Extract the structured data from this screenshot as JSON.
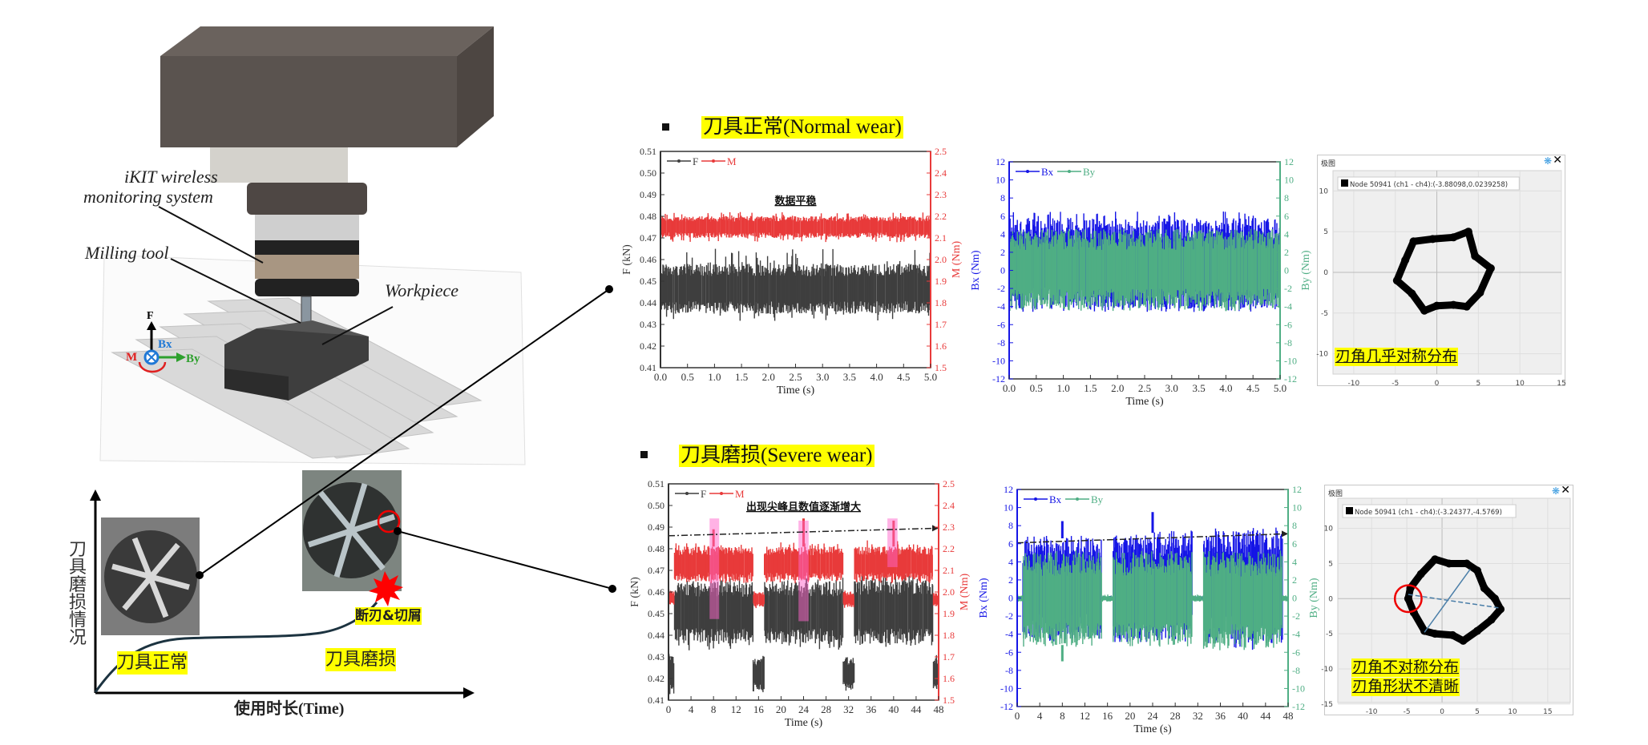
{
  "illustration": {
    "label_system_line1": "iKIT wireless",
    "label_system_line2": "monitoring system",
    "label_tool": "Milling tool",
    "label_workpiece": "Workpiece",
    "axis_F": "F",
    "axis_Bx": "Bx",
    "axis_By": "By",
    "axis_M": "M"
  },
  "wear_curve": {
    "ylabel": "刀具磨损情况",
    "xlabel": "使用时长(Time)",
    "stage_normal": "刀具正常",
    "stage_worn": "刀具磨损",
    "event_label": "断刃&切屑"
  },
  "rows": [
    {
      "header": "刀具正常(Normal wear)"
    },
    {
      "header": "刀具磨损(Severe wear)"
    }
  ],
  "colors": {
    "F": "#3f3f3f",
    "M": "#e83a3a",
    "Bx": "#1515e6",
    "By": "#4fae84",
    "highlight": "#ff66cc",
    "annot": "#ffff00"
  },
  "chart_data": [
    {
      "id": "normal_fm",
      "type": "line",
      "title": "",
      "annotation": "数据平稳",
      "xlabel": "Time (s)",
      "ylabel": "F (kN)",
      "y2label": "M (Nm)",
      "xlim": [
        0,
        5
      ],
      "ylim": [
        0.41,
        0.51
      ],
      "y2lim": [
        1.5,
        2.5
      ],
      "xticks": [
        "0.0",
        "0.5",
        "1.0",
        "1.5",
        "2.0",
        "2.5",
        "3.0",
        "3.5",
        "4.0",
        "4.5",
        "5.0"
      ],
      "yticks": [
        "0.41",
        "0.42",
        "0.43",
        "0.44",
        "0.45",
        "0.46",
        "0.47",
        "0.48",
        "0.49",
        "0.50",
        "0.51"
      ],
      "y2ticks": [
        "1.5",
        "1.6",
        "1.7",
        "1.8",
        "1.9",
        "2.0",
        "2.1",
        "2.2",
        "2.3",
        "2.4",
        "2.5"
      ],
      "legend": [
        "F",
        "M"
      ],
      "legend_position": "top-left",
      "series": [
        {
          "name": "F",
          "axis": "left",
          "color": "#3f3f3f",
          "bands": [
            {
              "x": [
                0,
                5
              ],
              "lo": 0.435,
              "hi": 0.458,
              "min": 0.431,
              "max": 0.465
            }
          ]
        },
        {
          "name": "M",
          "axis": "right",
          "color": "#e83a3a",
          "bands": [
            {
              "x": [
                0,
                5
              ],
              "lo": 2.1,
              "hi": 2.2,
              "min": 2.08,
              "max": 2.22
            }
          ]
        }
      ]
    },
    {
      "id": "normal_bxby",
      "type": "line",
      "xlabel": "Time (s)",
      "ylabel": "Bx (Nm)",
      "y2label": "By (Nm)",
      "xlim": [
        0,
        5
      ],
      "ylim": [
        -12,
        12
      ],
      "y2lim": [
        -12,
        12
      ],
      "xticks": [
        "0.0",
        "0.5",
        "1.0",
        "1.5",
        "2.0",
        "2.5",
        "3.0",
        "3.5",
        "4.0",
        "4.5",
        "5.0"
      ],
      "yticks": [
        "-12",
        "-10",
        "-8",
        "-6",
        "-4",
        "-2",
        "0",
        "2",
        "4",
        "6",
        "8",
        "10",
        "12"
      ],
      "y2ticks": [
        "-12",
        "-10",
        "-8",
        "-6",
        "-4",
        "-2",
        "0",
        "2",
        "4",
        "6",
        "8",
        "10",
        "12"
      ],
      "legend": [
        "Bx",
        "By"
      ],
      "legend_position": "top-left",
      "series": [
        {
          "name": "Bx",
          "axis": "left",
          "color": "#1515e6",
          "bands": [
            {
              "x": [
                0,
                5
              ],
              "lo": -4.3,
              "hi": 5.8,
              "min": -4.6,
              "max": 6.5
            }
          ]
        },
        {
          "name": "By",
          "axis": "right",
          "color": "#4fae84",
          "bands": [
            {
              "x": [
                0,
                5
              ],
              "lo": -4.2,
              "hi": 4.4,
              "min": -4.5,
              "max": 4.6
            }
          ]
        }
      ]
    },
    {
      "id": "severe_fm",
      "type": "line",
      "annotation": "出现尖峰且数值逐渐增大",
      "xlabel": "Time (s)",
      "ylabel": "F (kN)",
      "y2label": "M (Nm)",
      "xlim": [
        0,
        48
      ],
      "ylim": [
        0.41,
        0.51
      ],
      "y2lim": [
        1.5,
        2.5
      ],
      "xticks": [
        "0",
        "4",
        "8",
        "12",
        "16",
        "20",
        "24",
        "28",
        "32",
        "36",
        "40",
        "44",
        "48"
      ],
      "yticks": [
        "0.41",
        "0.42",
        "0.43",
        "0.44",
        "0.45",
        "0.46",
        "0.47",
        "0.48",
        "0.49",
        "0.50",
        "0.51"
      ],
      "y2ticks": [
        "1.5",
        "1.6",
        "1.7",
        "1.8",
        "1.9",
        "2.0",
        "2.1",
        "2.2",
        "2.3",
        "2.4",
        "2.5"
      ],
      "legend": [
        "F",
        "M"
      ],
      "legend_position": "top-left",
      "series": [
        {
          "name": "F",
          "axis": "left",
          "color": "#3f3f3f",
          "bands": [
            {
              "x": [
                0,
                1
              ],
              "lo": 0.413,
              "hi": 0.431,
              "min": 0.412,
              "max": 0.432
            },
            {
              "x": [
                1,
                15
              ],
              "lo": 0.436,
              "hi": 0.465,
              "min": 0.433,
              "max": 0.467
            },
            {
              "x": [
                15,
                17
              ],
              "lo": 0.414,
              "hi": 0.43,
              "min": 0.413,
              "max": 0.431
            },
            {
              "x": [
                17,
                31
              ],
              "lo": 0.436,
              "hi": 0.465,
              "min": 0.433,
              "max": 0.467
            },
            {
              "x": [
                31,
                33
              ],
              "lo": 0.415,
              "hi": 0.43,
              "min": 0.413,
              "max": 0.431
            },
            {
              "x": [
                33,
                47
              ],
              "lo": 0.436,
              "hi": 0.466,
              "min": 0.434,
              "max": 0.468
            },
            {
              "x": [
                47,
                48
              ],
              "lo": 0.415,
              "hi": 0.43,
              "min": 0.413,
              "max": 0.432
            }
          ]
        },
        {
          "name": "M",
          "axis": "right",
          "color": "#e83a3a",
          "bands": [
            {
              "x": [
                0,
                1
              ],
              "lo": 1.94,
              "hi": 2.01,
              "min": 1.93,
              "max": 2.02
            },
            {
              "x": [
                1,
                15
              ],
              "lo": 2.05,
              "hi": 2.21,
              "min": 2.04,
              "max": 2.23
            },
            {
              "x": [
                15,
                17
              ],
              "lo": 1.93,
              "hi": 2.0,
              "min": 1.92,
              "max": 2.01
            },
            {
              "x": [
                17,
                31
              ],
              "lo": 2.05,
              "hi": 2.21,
              "min": 2.04,
              "max": 2.23
            },
            {
              "x": [
                31,
                33
              ],
              "lo": 1.93,
              "hi": 2.0,
              "min": 1.92,
              "max": 2.01
            },
            {
              "x": [
                33,
                47
              ],
              "lo": 2.05,
              "hi": 2.21,
              "min": 2.04,
              "max": 2.24
            },
            {
              "x": [
                47,
                48
              ],
              "lo": 1.93,
              "hi": 2.0,
              "min": 1.92,
              "max": 2.01
            }
          ],
          "spikes": [
            {
              "x": 8,
              "y": 2.29
            },
            {
              "x": 24,
              "y": 2.34
            },
            {
              "x": 40,
              "y": 2.33
            }
          ]
        }
      ],
      "highlights": [
        {
          "x": [
            7.3,
            9.0
          ],
          "y": [
            0.4475,
            0.494
          ]
        },
        {
          "x": [
            23.1,
            24.9
          ],
          "y": [
            0.4465,
            0.493
          ]
        },
        {
          "x": [
            38.9,
            40.7
          ],
          "y": [
            0.4715,
            0.494
          ]
        }
      ],
      "trend": {
        "from": [
          0,
          0.486
        ],
        "to": [
          48,
          0.4895
        ],
        "axis": "left"
      }
    },
    {
      "id": "severe_bxby",
      "type": "line",
      "xlabel": "Time (s)",
      "ylabel": "Bx (Nm)",
      "y2label": "By (Nm)",
      "xlim": [
        0,
        48
      ],
      "ylim": [
        -12,
        12
      ],
      "y2lim": [
        -12,
        12
      ],
      "xticks": [
        "0",
        "4",
        "8",
        "12",
        "16",
        "20",
        "24",
        "28",
        "32",
        "36",
        "40",
        "44",
        "48"
      ],
      "yticks": [
        "-12",
        "-10",
        "-8",
        "-6",
        "-4",
        "-2",
        "0",
        "2",
        "4",
        "6",
        "8",
        "10",
        "12"
      ],
      "y2ticks": [
        "-12",
        "-10",
        "-8",
        "-6",
        "-4",
        "-2",
        "0",
        "2",
        "4",
        "6",
        "8",
        "10",
        "12"
      ],
      "legend": [
        "Bx",
        "By"
      ],
      "legend_position": "top-left",
      "series": [
        {
          "name": "Bx",
          "axis": "left",
          "color": "#1515e6",
          "bands": [
            {
              "x": [
                0,
                1
              ],
              "lo": -0.2,
              "hi": 0.2,
              "min": -0.3,
              "max": 0.3
            },
            {
              "x": [
                1,
                15
              ],
              "lo": -4.5,
              "hi": 6.6,
              "min": -4.8,
              "max": 6.9
            },
            {
              "x": [
                15,
                17
              ],
              "lo": -0.2,
              "hi": 0.2,
              "min": -0.3,
              "max": 0.3
            },
            {
              "x": [
                17,
                31
              ],
              "lo": -4.6,
              "hi": 7.2,
              "min": -4.9,
              "max": 7.5
            },
            {
              "x": [
                31,
                33
              ],
              "lo": -0.2,
              "hi": 0.2,
              "min": -0.3,
              "max": 0.3
            },
            {
              "x": [
                33,
                47
              ],
              "lo": -5.0,
              "hi": 7.5,
              "min": -5.8,
              "max": 7.8
            },
            {
              "x": [
                47,
                48
              ],
              "lo": -0.2,
              "hi": 0.2,
              "min": -0.3,
              "max": 0.3
            }
          ],
          "spikes": [
            {
              "x": 8,
              "y": 8.5
            },
            {
              "x": 24,
              "y": 9.5
            }
          ]
        },
        {
          "name": "By",
          "axis": "right",
          "color": "#4fae84",
          "bands": [
            {
              "x": [
                0,
                1
              ],
              "lo": -0.4,
              "hi": 0.3,
              "min": -0.5,
              "max": 0.4
            },
            {
              "x": [
                1,
                15
              ],
              "lo": -5.2,
              "hi": 5.0,
              "min": -5.4,
              "max": 5.3
            },
            {
              "x": [
                15,
                17
              ],
              "lo": -0.4,
              "hi": 0.3,
              "min": -0.5,
              "max": 0.4
            },
            {
              "x": [
                17,
                31
              ],
              "lo": -5.2,
              "hi": 5.0,
              "min": -5.4,
              "max": 5.2
            },
            {
              "x": [
                31,
                33
              ],
              "lo": -0.4,
              "hi": 0.3,
              "min": -0.5,
              "max": 0.4
            },
            {
              "x": [
                33,
                47
              ],
              "lo": -5.5,
              "hi": 5.0,
              "min": -5.8,
              "max": 5.4
            },
            {
              "x": [
                47,
                48
              ],
              "lo": -0.4,
              "hi": 0.3,
              "min": -0.5,
              "max": 0.4
            }
          ],
          "spikes": [
            {
              "x": 8,
              "y": -7.0
            }
          ]
        }
      ],
      "trend": {
        "from": [
          0,
          6.1
        ],
        "to": [
          48,
          7.1
        ],
        "axis": "left"
      }
    },
    {
      "id": "polar_normal",
      "type": "scatter",
      "window_title": "极图",
      "legend": "Node 50941 (ch1 - ch4):(-3.88098,0.0239258)",
      "annotation": "刃角几乎对称分布",
      "xlim": [
        -12.5,
        15
      ],
      "ylim": [
        -12.5,
        12.5
      ],
      "xticks": [
        "-10",
        "-5",
        "0",
        "5",
        "10",
        "15"
      ],
      "yticks": [
        "-10",
        "-5",
        "0",
        "5",
        "10"
      ],
      "grid": true,
      "points": [
        [
          -2.8,
          3.8
        ],
        [
          -0.5,
          4.1
        ],
        [
          2,
          4.3
        ],
        [
          3.8,
          5
        ],
        [
          4.6,
          2
        ],
        [
          6.5,
          0.5
        ],
        [
          5.2,
          -2.5
        ],
        [
          3.6,
          -4.2
        ],
        [
          2,
          -4
        ],
        [
          0,
          -4.1
        ],
        [
          -1.5,
          -4.7
        ],
        [
          -3,
          -2.6
        ],
        [
          -4.8,
          -1
        ],
        [
          -3.8,
          1.5
        ],
        [
          -2.8,
          3.8
        ]
      ]
    },
    {
      "id": "polar_severe",
      "type": "scatter",
      "window_title": "极图",
      "legend": "Node 50941 (ch1 - ch4):(-3.24377,-4.5769)",
      "annotation": [
        "刃角不对称分布",
        "刃角形状不清晰"
      ],
      "xlim": [
        -14.8,
        18.2
      ],
      "ylim": [
        -14.8,
        14.3
      ],
      "xticks": [
        "-10",
        "-5",
        "0",
        "5",
        "10",
        "15"
      ],
      "yticks": [
        "-15",
        "-10",
        "-5",
        "0",
        "5",
        "10"
      ],
      "grid": true,
      "points": [
        [
          -4.5,
          1.5
        ],
        [
          -3,
          3.5
        ],
        [
          -1,
          5.6
        ],
        [
          1,
          5
        ],
        [
          3.5,
          5
        ],
        [
          5,
          4
        ],
        [
          6,
          1.5
        ],
        [
          7.5,
          0
        ],
        [
          8.3,
          -1.5
        ],
        [
          7,
          -3
        ],
        [
          5,
          -4.6
        ],
        [
          3,
          -6
        ],
        [
          1.5,
          -5.2
        ],
        [
          -1,
          -5
        ],
        [
          -2.5,
          -4.6
        ],
        [
          -4,
          -2
        ],
        [
          -4.8,
          0
        ],
        [
          -4.5,
          1.5
        ]
      ],
      "axes_lines": [
        {
          "from": [
            -4.8,
            0.6
          ],
          "to": [
            8,
            -1.3
          ],
          "style": "dashed"
        },
        {
          "from": [
            -2.5,
            -4.8
          ],
          "to": [
            4,
            4.2
          ],
          "style": "solid"
        }
      ],
      "marked_region": {
        "center": [
          -4.8,
          0
        ],
        "radius": 1.9
      }
    }
  ]
}
